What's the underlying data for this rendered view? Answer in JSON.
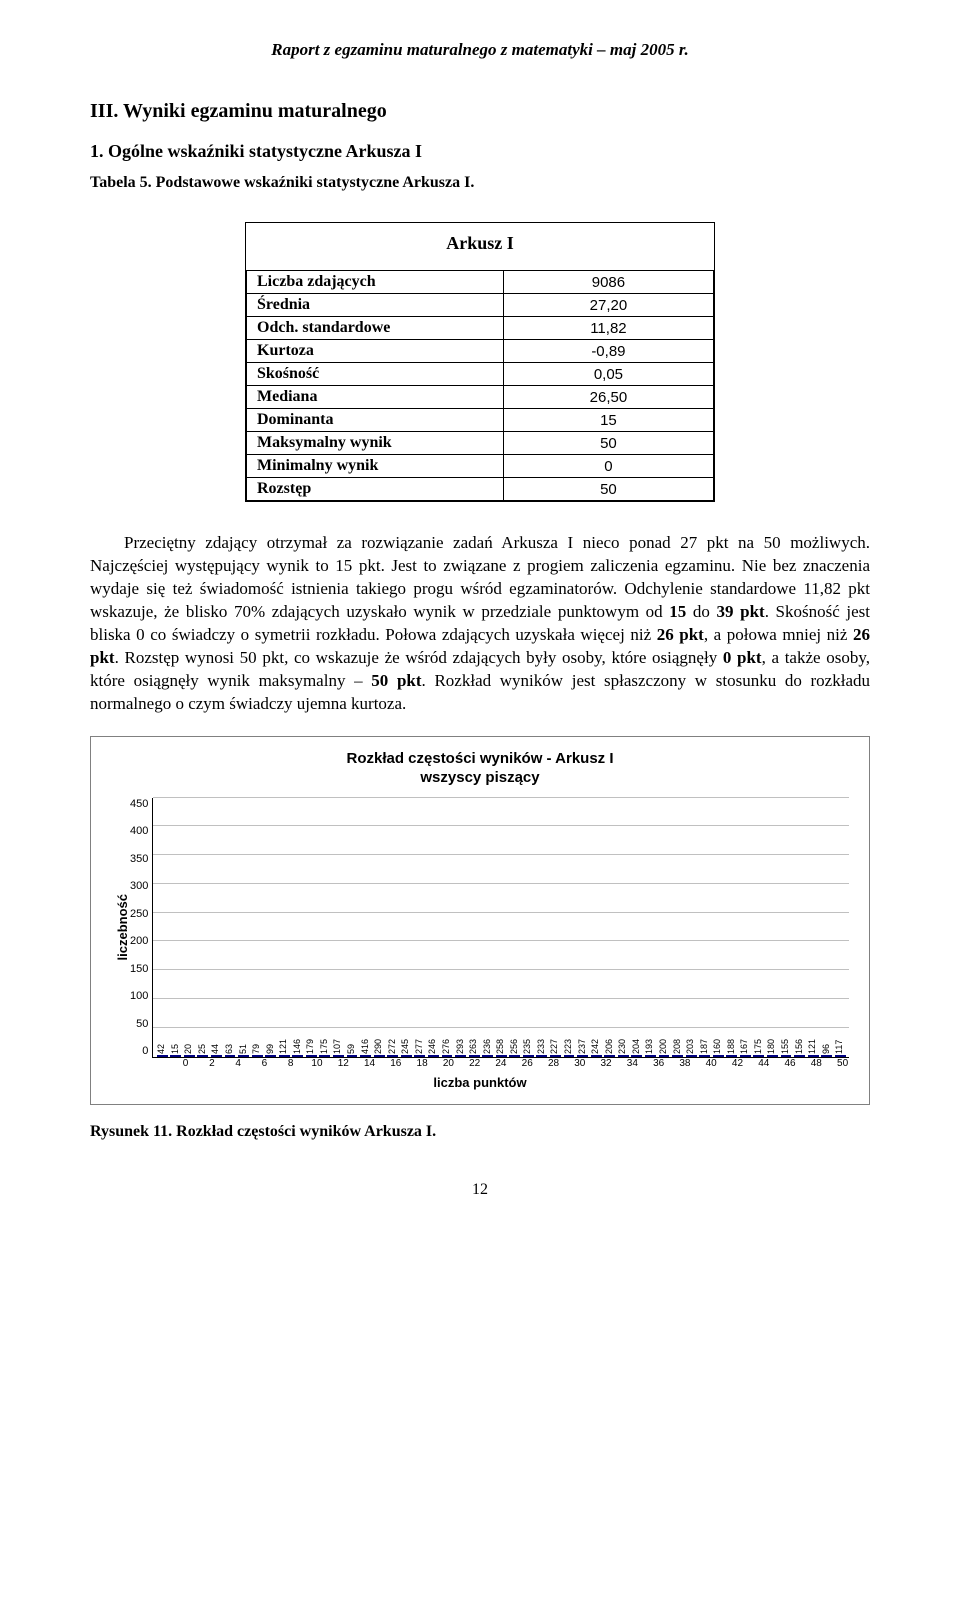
{
  "header": "Raport z egzaminu maturalnego z matematyki – maj 2005 r.",
  "section_heading": "III. Wyniki egzaminu maturalnego",
  "subsection_heading": "1. Ogólne wskaźniki statystyczne Arkusza I",
  "table_caption": "Tabela 5. Podstawowe wskaźniki statystyczne Arkusza I.",
  "stats_table": {
    "title": "Arkusz I",
    "rows": [
      {
        "label": "Liczba zdających",
        "value": "9086"
      },
      {
        "label": "Średnia",
        "value": "27,20"
      },
      {
        "label": "Odch. standardowe",
        "value": "11,82"
      },
      {
        "label": "Kurtoza",
        "value": "-0,89"
      },
      {
        "label": "Skośność",
        "value": "0,05"
      },
      {
        "label": "Mediana",
        "value": "26,50"
      },
      {
        "label": "Dominanta",
        "value": "15"
      },
      {
        "label": "Maksymalny wynik",
        "value": "50"
      },
      {
        "label": "Minimalny wynik",
        "value": "0"
      },
      {
        "label": "Rozstęp",
        "value": "50"
      }
    ]
  },
  "body_html": "Przeciętny zdający otrzymał za rozwiązanie zadań Arkusza I nieco ponad 27 pkt na 50 możliwych. Najczęściej występujący wynik to 15 pkt. Jest to związane z progiem zaliczenia egzaminu. Nie bez znaczenia wydaje się też świadomość istnienia takiego progu wśród egzaminatorów. Odchylenie standardowe 11,82 pkt wskazuje, że blisko 70% zdających uzyskało wynik w przedziale punktowym od <b>15</b> do <b>39 pkt</b>. Skośność jest bliska 0 co świadczy o symetrii rozkładu. Połowa zdających uzyskała więcej niż <b>26 pkt</b>, a połowa mniej niż <b>26 pkt</b>. Rozstęp wynosi 50 pkt, co wskazuje że wśród zdających były osoby, które osiągnęły <b>0 pkt</b>, a także osoby, które osiągnęły wynik maksymalny – <b>50 pkt</b>. Rozkład wyników jest spłaszczony w stosunku do rozkładu normalnego o czym świadczy ujemna kurtoza.",
  "chart": {
    "type": "bar",
    "title_line1": "Rozkład częstości wyników  - Arkusz I",
    "title_line2": "wszyscy piszący",
    "ylabel": "liczebność",
    "xlabel": "liczba punktów",
    "ylim": [
      0,
      450
    ],
    "ytick_step": 50,
    "yticks": [
      450,
      400,
      350,
      300,
      250,
      200,
      150,
      100,
      50,
      0
    ],
    "xticks": [
      "0",
      "2",
      "4",
      "6",
      "8",
      "10",
      "12",
      "14",
      "16",
      "18",
      "20",
      "22",
      "24",
      "26",
      "28",
      "30",
      "32",
      "34",
      "36",
      "38",
      "40",
      "42",
      "44",
      "46",
      "48",
      "50"
    ],
    "bar_color": "#9999ff",
    "bar_border": "#000080",
    "grid_color": "#c0c0c0",
    "background_color": "#ffffff",
    "categories": [
      0,
      1,
      2,
      3,
      4,
      5,
      6,
      7,
      8,
      9,
      10,
      11,
      12,
      13,
      14,
      15,
      16,
      17,
      18,
      19,
      20,
      21,
      22,
      23,
      24,
      25,
      26,
      27,
      28,
      29,
      30,
      31,
      32,
      33,
      34,
      35,
      36,
      37,
      38,
      39,
      40,
      41,
      42,
      43,
      44,
      45,
      46,
      47,
      48,
      49,
      50
    ],
    "values": [
      42,
      15,
      20,
      25,
      44,
      63,
      51,
      79,
      99,
      121,
      146,
      179,
      175,
      107,
      59,
      416,
      290,
      272,
      245,
      277,
      246,
      276,
      293,
      263,
      236,
      258,
      256,
      235,
      233,
      227,
      223,
      237,
      242,
      206,
      230,
      204,
      193,
      200,
      208,
      203,
      187,
      160,
      188,
      167,
      175,
      180,
      155,
      156,
      121,
      96,
      117
    ]
  },
  "figure_caption": "Rysunek 11. Rozkład częstości wyników Arkusza I.",
  "page_number": "12"
}
